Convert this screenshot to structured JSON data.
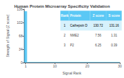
{
  "chart_data": {
    "type": "bar",
    "title": "Human Protein Microarray Specificity Validation",
    "xlabel": "Signal Rank",
    "ylabel": "Strength of Signal (Z score)",
    "series": [
      {
        "type": "bar",
        "x": [
          1
        ],
        "values": [
          130.72
        ],
        "color": "#5bc8f5"
      },
      {
        "type": "area",
        "x": [
          1.5,
          30
        ],
        "values": [
          1.0,
          1.0
        ],
        "color": "#5bc8f5"
      }
    ],
    "xlim": [
      0.5,
      30
    ],
    "xticks": [
      1,
      10,
      20,
      30
    ],
    "ylim": [
      0,
      136
    ],
    "yticks": [
      0,
      34,
      68,
      102,
      136
    ],
    "grid": false,
    "table": [
      [
        "Rank",
        "Protein",
        "Z score",
        "S score"
      ],
      [
        "1",
        "Cathepsin D",
        "130.72",
        "131.16"
      ],
      [
        "2",
        "NME2",
        "7.56",
        "1.31"
      ],
      [
        "3",
        "P2",
        "6.25",
        "0.39"
      ]
    ]
  }
}
